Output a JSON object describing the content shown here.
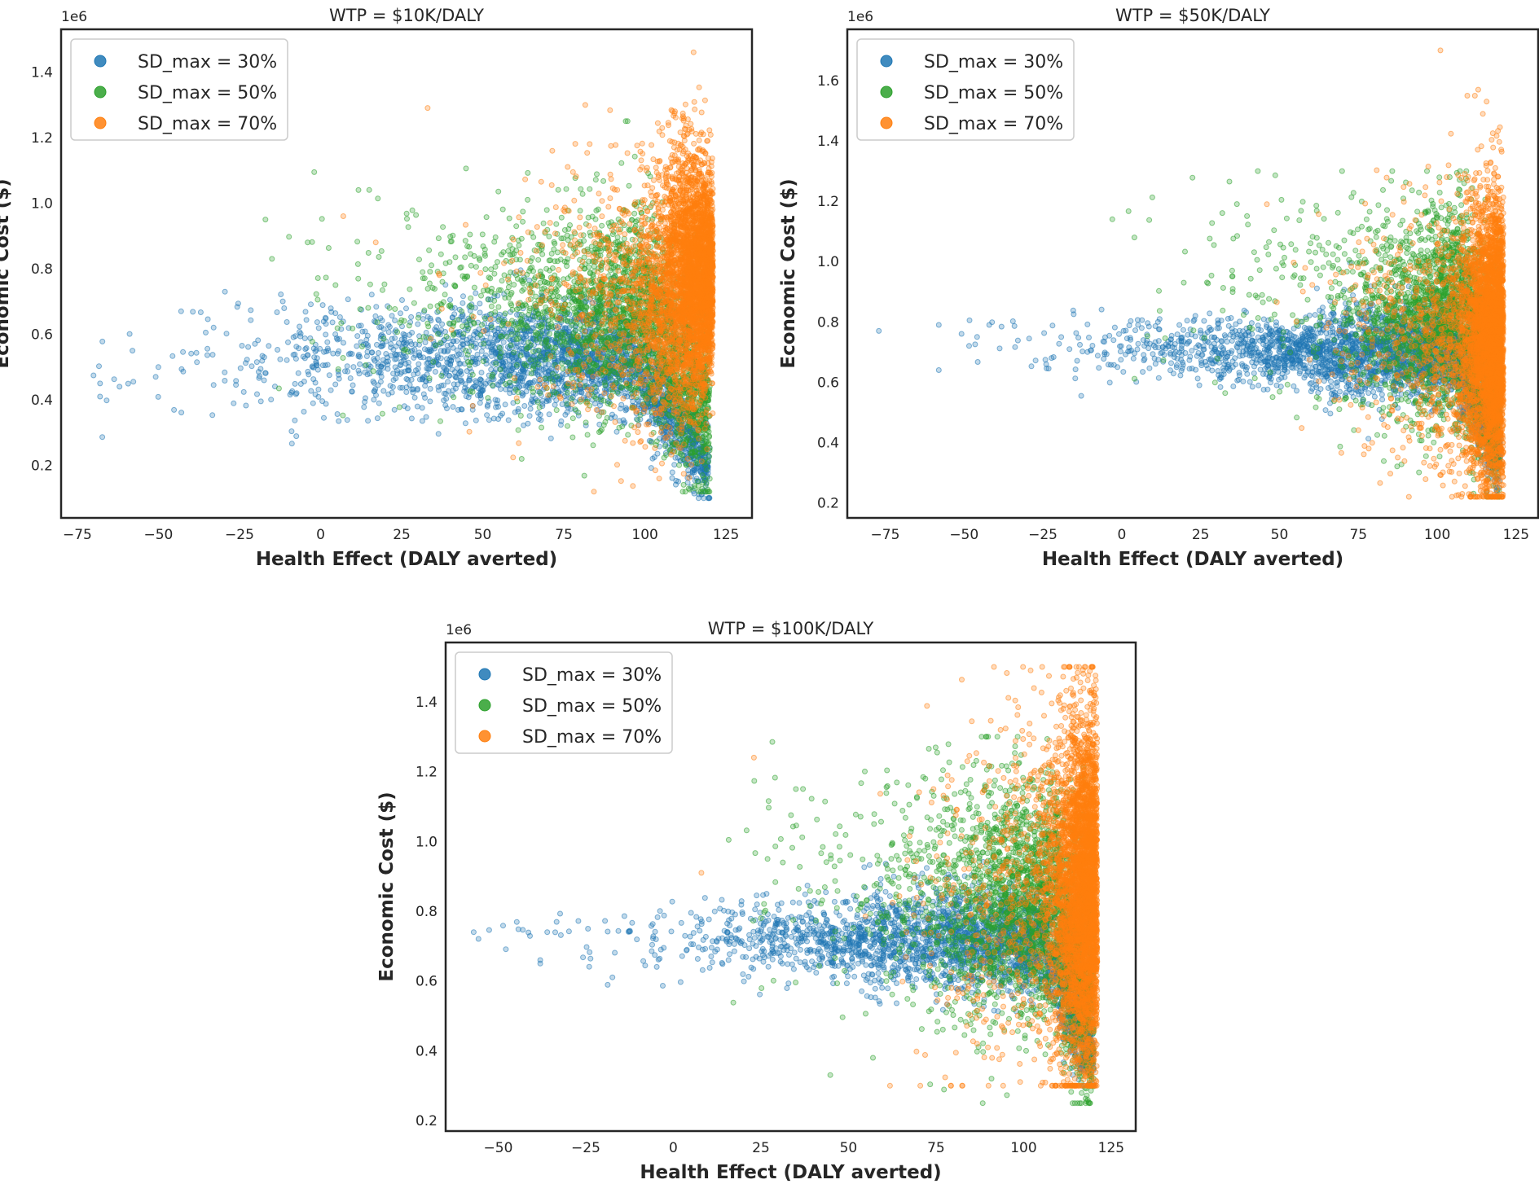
{
  "colors": {
    "s30": "#1f77b4",
    "s50": "#2ca02c",
    "s70": "#ff7f0e"
  },
  "legend": [
    "SD_max = 30%",
    "SD_max = 50%",
    "SD_max = 70%"
  ],
  "chart_data": [
    {
      "type": "scatter",
      "title": "WTP = $10K/DALY",
      "xlabel": "Health Effect (DALY averted)",
      "ylabel": "Economic Cost ($)",
      "y_offset_label": "1e6",
      "xlim": [
        -80,
        133
      ],
      "ylim": [
        0.04,
        1.53
      ],
      "xticks": [
        -75,
        -50,
        -25,
        0,
        25,
        50,
        75,
        100,
        125
      ],
      "xtick_labels": [
        "−75",
        "−50",
        "−25",
        "0",
        "25",
        "50",
        "75",
        "100",
        "125"
      ],
      "yticks": [
        0.2,
        0.4,
        0.6,
        0.8,
        1.0,
        1.2,
        1.4
      ],
      "ytick_labels": [
        "0.2",
        "0.4",
        "0.6",
        "0.8",
        "1.0",
        "1.2",
        "1.4"
      ],
      "legend_position": "upper-left",
      "series": [
        {
          "name": "SD_max = 30%",
          "x_range": [
            -68,
            120
          ],
          "y_center": 0.55,
          "y_spread": 0.1,
          "notable_points": [
            [
              -68,
              0.45
            ],
            [
              -68,
              0.41
            ],
            [
              -62,
              0.44
            ],
            [
              -58,
              0.55
            ],
            [
              -50,
              0.5
            ],
            [
              -43,
              0.67
            ]
          ]
        },
        {
          "name": "SD_max = 50%",
          "x_range": [
            -30,
            121
          ],
          "y_center": 0.7,
          "y_spread": 0.2,
          "notable_points": [
            [
              -17,
              0.95
            ],
            [
              -15,
              0.83
            ],
            [
              -4,
              0.88
            ],
            [
              15,
              1.04
            ],
            [
              62,
              0.22
            ]
          ]
        },
        {
          "name": "SD_max = 70%",
          "x_range": [
            5,
            121
          ],
          "y_center": 0.75,
          "y_spread": 0.25,
          "notable_points": [
            [
              7,
              0.96
            ],
            [
              33,
              1.29
            ],
            [
              115,
              1.46
            ],
            [
              17,
              0.88
            ]
          ]
        }
      ]
    },
    {
      "type": "scatter",
      "title": "WTP = $50K/DALY",
      "xlabel": "Health Effect (DALY averted)",
      "ylabel": "Economic Cost ($)",
      "y_offset_label": "1e6",
      "xlim": [
        -87,
        132
      ],
      "ylim": [
        0.15,
        1.77
      ],
      "xticks": [
        -75,
        -50,
        -25,
        0,
        25,
        50,
        75,
        100,
        125
      ],
      "xtick_labels": [
        "−75",
        "−50",
        "−25",
        "0",
        "25",
        "50",
        "75",
        "100",
        "125"
      ],
      "yticks": [
        0.2,
        0.4,
        0.6,
        0.8,
        1.0,
        1.2,
        1.4,
        1.6
      ],
      "ytick_labels": [
        "0.2",
        "0.4",
        "0.6",
        "0.8",
        "1.0",
        "1.2",
        "1.4",
        "1.6"
      ],
      "legend_position": "upper-left",
      "series": [
        {
          "name": "SD_max = 30%",
          "x_range": [
            -77,
            120
          ],
          "y_center": 0.71,
          "y_spread": 0.06,
          "notable_points": [
            [
              -77,
              0.77
            ],
            [
              -58,
              0.79
            ],
            [
              -58,
              0.64
            ],
            [
              -42,
              0.79
            ]
          ]
        },
        {
          "name": "SD_max = 50%",
          "x_range": [
            -5,
            121
          ],
          "y_center": 0.85,
          "y_spread": 0.18,
          "notable_points": [
            [
              -3,
              1.14
            ],
            [
              4,
              1.08
            ],
            [
              35,
              0.97
            ]
          ]
        },
        {
          "name": "SD_max = 70%",
          "x_range": [
            25,
            121
          ],
          "y_center": 0.8,
          "y_spread": 0.22,
          "notable_points": [
            [
              101,
              1.7
            ],
            [
              46,
              1.19
            ],
            [
              113,
              1.57
            ]
          ]
        }
      ]
    },
    {
      "type": "scatter",
      "title": "WTP = $100K/DALY",
      "xlabel": "Health Effect (DALY averted)",
      "ylabel": "Economic Cost ($)",
      "y_offset_label": "1e6",
      "xlim": [
        -65,
        132
      ],
      "ylim": [
        0.17,
        1.57
      ],
      "xticks": [
        -50,
        -25,
        0,
        25,
        50,
        75,
        100,
        125
      ],
      "xtick_labels": [
        "−50",
        "−25",
        "0",
        "25",
        "50",
        "75",
        "100",
        "125"
      ],
      "yticks": [
        0.2,
        0.4,
        0.6,
        0.8,
        1.0,
        1.2,
        1.4
      ],
      "ytick_labels": [
        "0.2",
        "0.4",
        "0.6",
        "0.8",
        "1.0",
        "1.2",
        "1.4"
      ],
      "legend_position": "upper-left",
      "series": [
        {
          "name": "SD_max = 30%",
          "x_range": [
            -57,
            120
          ],
          "y_center": 0.73,
          "y_spread": 0.06,
          "notable_points": [
            [
              -57,
              0.74
            ],
            [
              -38,
              0.66
            ],
            [
              -38,
              0.65
            ],
            [
              -36,
              0.74
            ]
          ]
        },
        {
          "name": "SD_max = 50%",
          "x_range": [
            10,
            121
          ],
          "y_center": 0.85,
          "y_spread": 0.2,
          "notable_points": [
            [
              25,
              0.78
            ],
            [
              35,
              1.15
            ],
            [
              57,
              0.38
            ]
          ]
        },
        {
          "name": "SD_max = 70%",
          "x_range": [
            8,
            121
          ],
          "y_center": 0.85,
          "y_spread": 0.25,
          "notable_points": [
            [
              8,
              0.91
            ],
            [
              23,
              1.24
            ],
            [
              102,
              1.49
            ]
          ]
        }
      ]
    }
  ]
}
